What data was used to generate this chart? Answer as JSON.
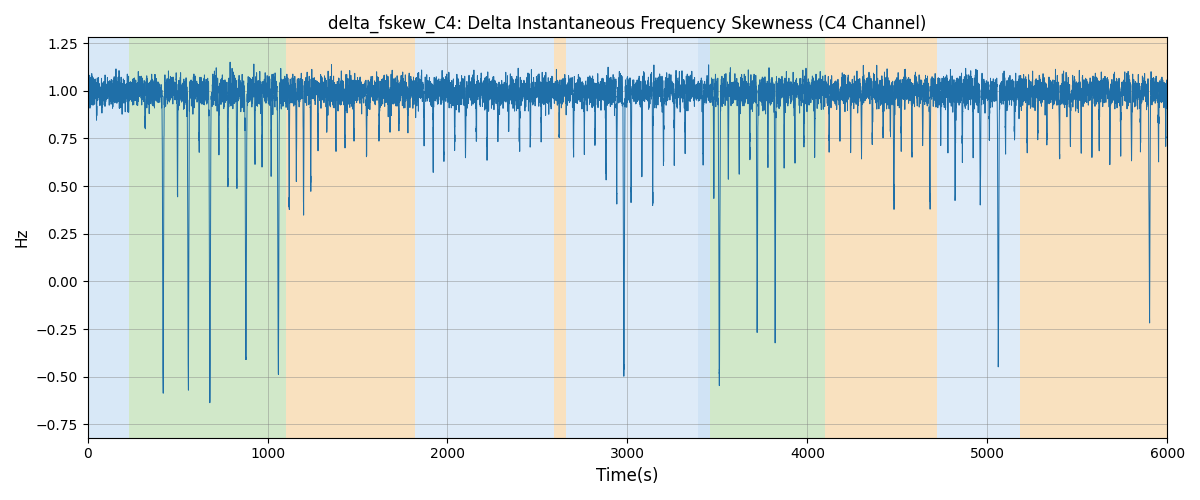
{
  "title": "delta_fskew_C4: Delta Instantaneous Frequency Skewness (C4 Channel)",
  "xlabel": "Time(s)",
  "ylabel": "Hz",
  "xlim": [
    0,
    6000
  ],
  "ylim": [
    -0.82,
    1.28
  ],
  "line_color": "#1f6fa8",
  "line_width": 0.7,
  "figsize": [
    12.0,
    5.0
  ],
  "dpi": 100,
  "bg_regions": [
    {
      "xmin": 0,
      "xmax": 230,
      "color": "#aaccee",
      "alpha": 0.45
    },
    {
      "xmin": 230,
      "xmax": 1100,
      "color": "#99cc88",
      "alpha": 0.45
    },
    {
      "xmin": 1100,
      "xmax": 1820,
      "color": "#f5c580",
      "alpha": 0.5
    },
    {
      "xmin": 1820,
      "xmax": 2590,
      "color": "#aaccee",
      "alpha": 0.38
    },
    {
      "xmin": 2590,
      "xmax": 2660,
      "color": "#f5c580",
      "alpha": 0.5
    },
    {
      "xmin": 2660,
      "xmax": 3390,
      "color": "#aaccee",
      "alpha": 0.38
    },
    {
      "xmin": 3390,
      "xmax": 3460,
      "color": "#aaccee",
      "alpha": 0.55
    },
    {
      "xmin": 3460,
      "xmax": 4100,
      "color": "#99cc88",
      "alpha": 0.45
    },
    {
      "xmin": 4100,
      "xmax": 4720,
      "color": "#f5c580",
      "alpha": 0.5
    },
    {
      "xmin": 4720,
      "xmax": 5180,
      "color": "#aaccee",
      "alpha": 0.38
    },
    {
      "xmin": 5180,
      "xmax": 6000,
      "color": "#f5c580",
      "alpha": 0.5
    }
  ],
  "title_fontsize": 12,
  "noise_std": 0.04,
  "base_level": 1.0,
  "xticks": [
    0,
    1000,
    2000,
    3000,
    4000,
    5000,
    6000
  ]
}
